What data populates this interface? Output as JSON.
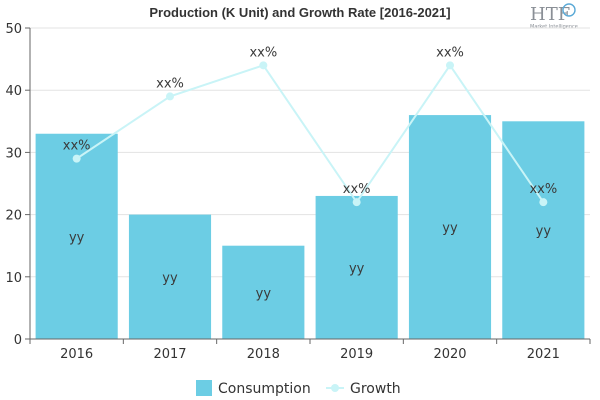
{
  "chart_data": {
    "type": "bar",
    "title": "Production (K Unit) and Growth Rate [2016-2021]",
    "categories": [
      "2016",
      "2017",
      "2018",
      "2019",
      "2020",
      "2021"
    ],
    "series": [
      {
        "name": "Consumption",
        "type": "bar",
        "values": [
          33,
          20,
          15,
          23,
          36,
          35
        ],
        "labels": [
          "yy",
          "yy",
          "yy",
          "yy",
          "yy",
          "yy"
        ],
        "color": "#6ccde4"
      },
      {
        "name": "Growth",
        "type": "line",
        "values": [
          29,
          39,
          44,
          22,
          44,
          22
        ],
        "labels": [
          "xx%",
          "xx%",
          "xx%",
          "xx%",
          "xx%",
          "xx%"
        ],
        "color": "#c9f4f7"
      }
    ],
    "ylim": [
      0,
      50
    ],
    "yticks": [
      "0",
      "10",
      "20",
      "30",
      "40",
      "50"
    ],
    "xlabel": "",
    "ylabel": "",
    "grid": true,
    "legend": "bottom"
  },
  "watermark": {
    "logo_text": "HTF",
    "logo_subtext": "Market Intelligence"
  }
}
